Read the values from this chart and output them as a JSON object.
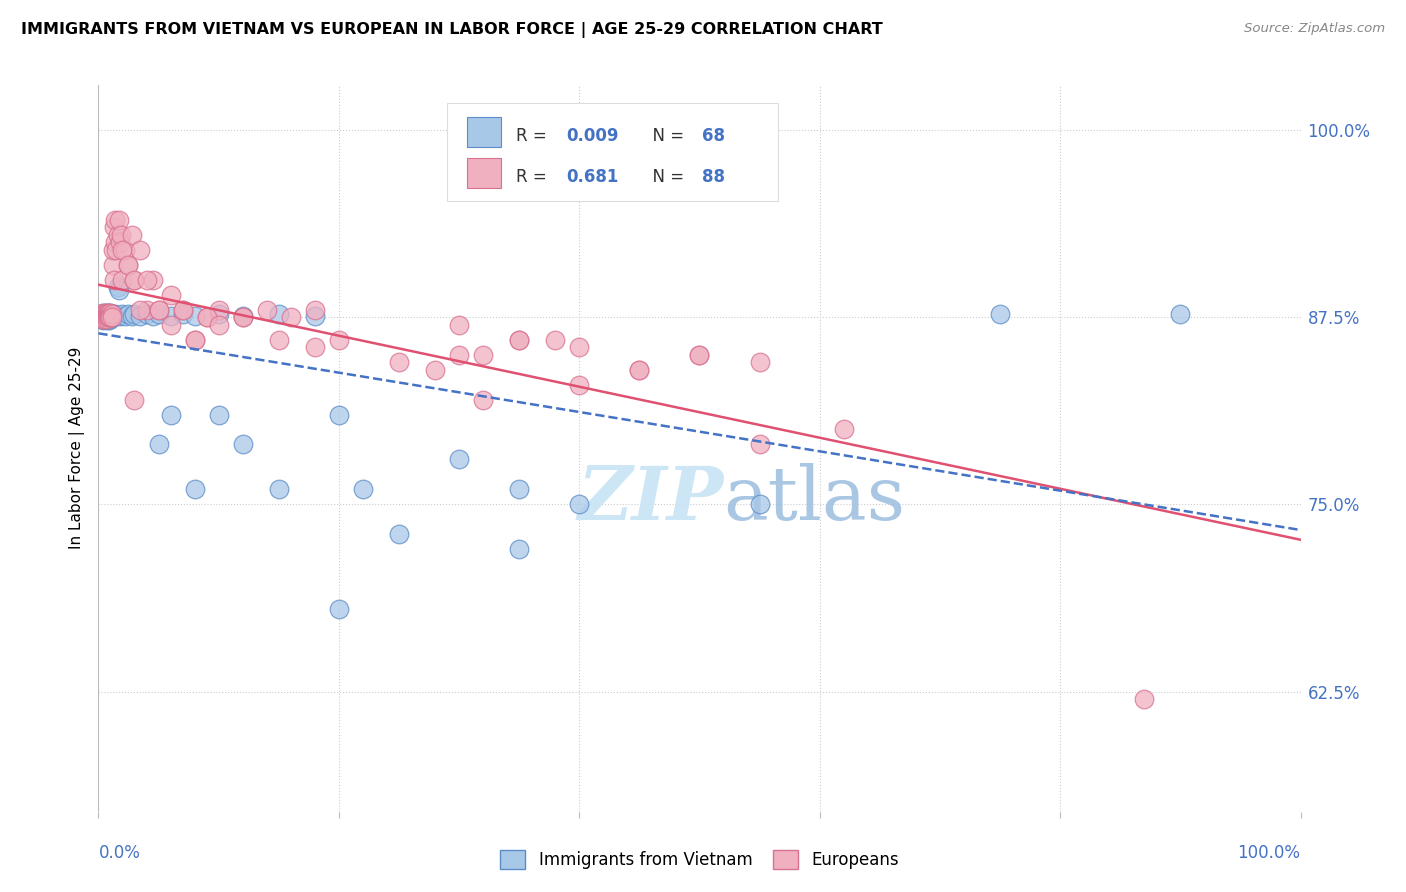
{
  "title": "IMMIGRANTS FROM VIETNAM VS EUROPEAN IN LABOR FORCE | AGE 25-29 CORRELATION CHART",
  "source": "Source: ZipAtlas.com",
  "ylabel": "In Labor Force | Age 25-29",
  "right_yticks": [
    0.625,
    0.75,
    0.875,
    1.0
  ],
  "right_yticklabels": [
    "62.5%",
    "75.0%",
    "87.5%",
    "100.0%"
  ],
  "xlim": [
    0.0,
    1.0
  ],
  "ylim": [
    0.545,
    1.03
  ],
  "legend_R1": "0.009",
  "legend_N1": "68",
  "legend_R2": "0.681",
  "legend_N2": "88",
  "color_blue_fill": "#A8C8E8",
  "color_blue_edge": "#5B8DC8",
  "color_pink_fill": "#F0B0C0",
  "color_pink_edge": "#D87090",
  "color_blue_line": "#4472C4",
  "color_pink_line": "#E05070",
  "color_tick_label": "#4472C4",
  "grid_color": "#CCCCCC",
  "watermark_color": "#C8E4F5",
  "bg_color": "#FFFFFF",
  "blue_x": [
    0.002,
    0.003,
    0.003,
    0.004,
    0.004,
    0.004,
    0.005,
    0.005,
    0.005,
    0.005,
    0.006,
    0.006,
    0.006,
    0.007,
    0.007,
    0.007,
    0.008,
    0.008,
    0.008,
    0.009,
    0.009,
    0.009,
    0.01,
    0.01,
    0.01,
    0.011,
    0.011,
    0.012,
    0.012,
    0.013,
    0.014,
    0.015,
    0.016,
    0.017,
    0.018,
    0.02,
    0.022,
    0.025,
    0.028,
    0.03,
    0.035,
    0.04,
    0.045,
    0.05,
    0.06,
    0.07,
    0.08,
    0.1,
    0.12,
    0.15,
    0.18,
    0.2,
    0.22,
    0.25,
    0.3,
    0.35,
    0.4,
    0.05,
    0.06,
    0.08,
    0.1,
    0.12,
    0.15,
    0.2,
    0.35,
    0.55,
    0.75,
    0.9
  ],
  "blue_y": [
    0.877,
    0.876,
    0.874,
    0.878,
    0.875,
    0.873,
    0.877,
    0.876,
    0.875,
    0.874,
    0.878,
    0.876,
    0.875,
    0.877,
    0.875,
    0.873,
    0.878,
    0.876,
    0.874,
    0.877,
    0.875,
    0.873,
    0.878,
    0.876,
    0.874,
    0.877,
    0.875,
    0.877,
    0.875,
    0.876,
    0.877,
    0.876,
    0.895,
    0.893,
    0.876,
    0.877,
    0.876,
    0.877,
    0.876,
    0.877,
    0.876,
    0.877,
    0.876,
    0.877,
    0.876,
    0.877,
    0.876,
    0.877,
    0.876,
    0.877,
    0.876,
    0.81,
    0.76,
    0.73,
    0.78,
    0.76,
    0.75,
    0.79,
    0.81,
    0.76,
    0.81,
    0.79,
    0.76,
    0.68,
    0.72,
    0.75,
    0.877,
    0.877
  ],
  "pink_x": [
    0.002,
    0.003,
    0.003,
    0.004,
    0.004,
    0.005,
    0.005,
    0.005,
    0.006,
    0.006,
    0.006,
    0.007,
    0.007,
    0.007,
    0.008,
    0.008,
    0.008,
    0.009,
    0.009,
    0.01,
    0.01,
    0.01,
    0.011,
    0.011,
    0.012,
    0.012,
    0.013,
    0.013,
    0.014,
    0.014,
    0.015,
    0.016,
    0.017,
    0.018,
    0.019,
    0.02,
    0.022,
    0.025,
    0.028,
    0.03,
    0.035,
    0.04,
    0.045,
    0.05,
    0.06,
    0.07,
    0.08,
    0.09,
    0.1,
    0.12,
    0.14,
    0.16,
    0.18,
    0.02,
    0.025,
    0.03,
    0.035,
    0.04,
    0.05,
    0.06,
    0.07,
    0.08,
    0.09,
    0.1,
    0.12,
    0.15,
    0.18,
    0.2,
    0.25,
    0.3,
    0.35,
    0.4,
    0.45,
    0.5,
    0.3,
    0.35,
    0.28,
    0.32,
    0.38,
    0.45,
    0.5,
    0.55,
    0.03,
    0.32,
    0.4,
    0.55,
    0.62,
    0.87
  ],
  "pink_y": [
    0.876,
    0.877,
    0.874,
    0.878,
    0.875,
    0.877,
    0.875,
    0.874,
    0.878,
    0.876,
    0.875,
    0.877,
    0.875,
    0.874,
    0.878,
    0.876,
    0.875,
    0.877,
    0.875,
    0.878,
    0.876,
    0.875,
    0.877,
    0.875,
    0.91,
    0.92,
    0.935,
    0.9,
    0.925,
    0.94,
    0.92,
    0.93,
    0.94,
    0.925,
    0.93,
    0.9,
    0.92,
    0.91,
    0.93,
    0.9,
    0.92,
    0.88,
    0.9,
    0.88,
    0.89,
    0.88,
    0.86,
    0.875,
    0.88,
    0.875,
    0.88,
    0.875,
    0.88,
    0.92,
    0.91,
    0.9,
    0.88,
    0.9,
    0.88,
    0.87,
    0.88,
    0.86,
    0.875,
    0.87,
    0.875,
    0.86,
    0.855,
    0.86,
    0.845,
    0.85,
    0.86,
    0.855,
    0.84,
    0.85,
    0.87,
    0.86,
    0.84,
    0.85,
    0.86,
    0.84,
    0.85,
    0.845,
    0.82,
    0.82,
    0.83,
    0.79,
    0.8,
    0.62
  ]
}
